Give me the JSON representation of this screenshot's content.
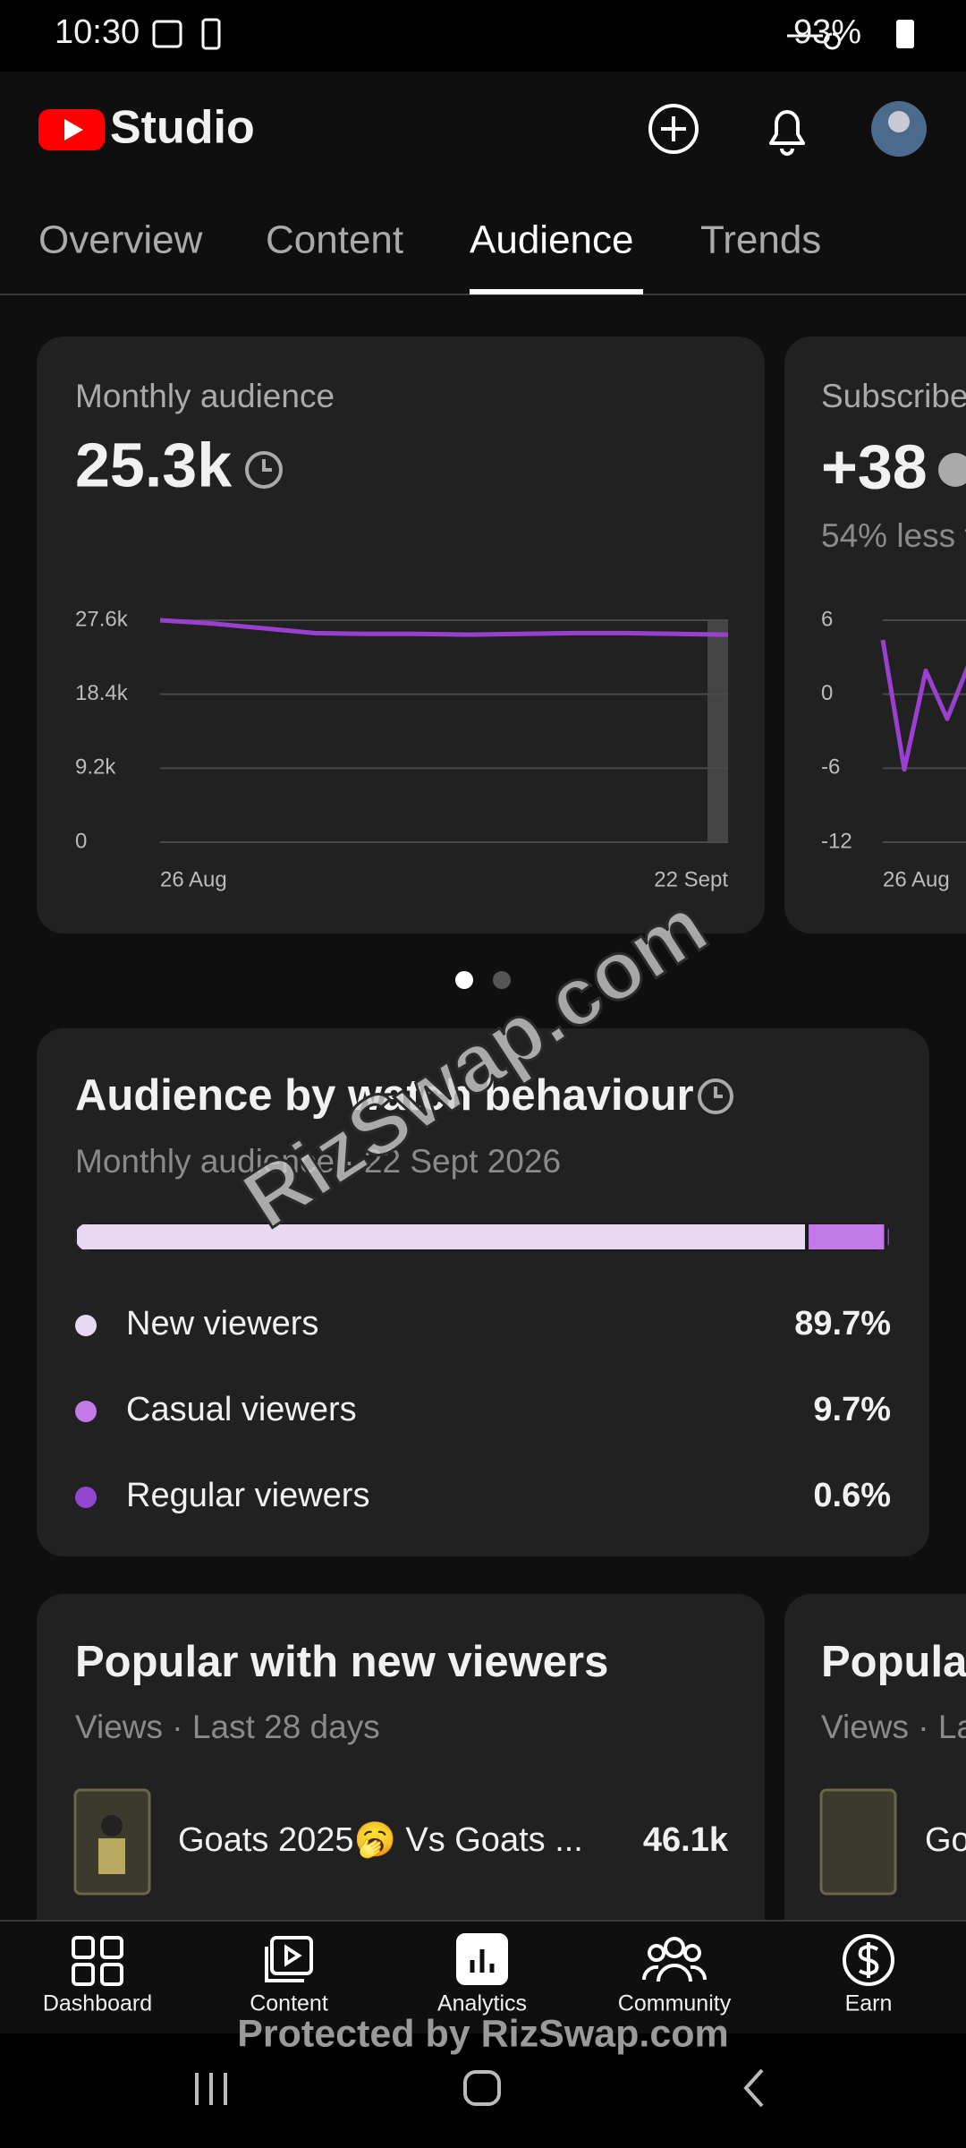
{
  "status_bar": {
    "time": "10:30",
    "battery": "93%"
  },
  "header": {
    "logo": "Studio"
  },
  "tabs": [
    "Overview",
    "Content",
    "Audience",
    "Trends"
  ],
  "chart_data": [
    {
      "type": "line",
      "title": "Monthly audience",
      "headline": "25.3k",
      "categories": [
        "26 Aug",
        null,
        null,
        null,
        null,
        null,
        null,
        null,
        null,
        null,
        null,
        "22 Sept"
      ],
      "values": [
        27600,
        27200,
        26600,
        26000,
        25900,
        25900,
        25800,
        25900,
        26000,
        26000,
        25900,
        25800
      ],
      "color": "#9b3fd1",
      "ylim": [
        0,
        27600
      ],
      "yticks": [
        0,
        {
          "value": 9200,
          "label": "9.2k"
        },
        {
          "value": 18400,
          "label": "18.4k"
        },
        {
          "value": 27600,
          "label": "27.6k"
        }
      ],
      "grid": true
    },
    {
      "type": "line",
      "title": "Subscribe",
      "headline": "+38",
      "subtitle": "54% less t",
      "categories": [
        "26 Aug",
        null,
        null,
        null,
        null
      ],
      "values": [
        4.4,
        -6.1,
        1.9,
        -2,
        2.4
      ],
      "color": "#9b3fd1",
      "ylim": [
        -12,
        6
      ],
      "yticks": [
        -12,
        -6,
        0,
        6
      ],
      "grid": true
    },
    {
      "type": "stacked-bar",
      "title": "Audience by watch behaviour",
      "subtitle": "Monthly audience · 22 Sept 2026",
      "xlim": [
        0,
        100
      ],
      "series": [
        {
          "name": "New viewers",
          "color": "#e8d9f3",
          "values": [
            89.7
          ],
          "value_labels": [
            "89.7%"
          ]
        },
        {
          "name": "Casual viewers",
          "color": "#c27ae8",
          "values": [
            9.7
          ],
          "value_labels": [
            "9.7%"
          ]
        },
        {
          "name": "Regular viewers",
          "color": "#9146cf",
          "values": [
            0.6
          ],
          "value_labels": [
            "0.6%"
          ]
        }
      ]
    }
  ],
  "popular": [
    {
      "title": "Popular with new viewers",
      "subtitle": "Views · Last 28 days",
      "item": {
        "title": "Goats 2025🥱 Vs Goats ...",
        "views": "46.1k"
      }
    },
    {
      "title": "Popula",
      "subtitle": "Views · La",
      "item": {
        "title": "Go"
      }
    }
  ],
  "nav": [
    "Dashboard",
    "Content",
    "Analytics",
    "Community",
    "Earn"
  ],
  "watermark": "RizSwap.com",
  "footer_watermark": "Protected by RizSwap.com"
}
